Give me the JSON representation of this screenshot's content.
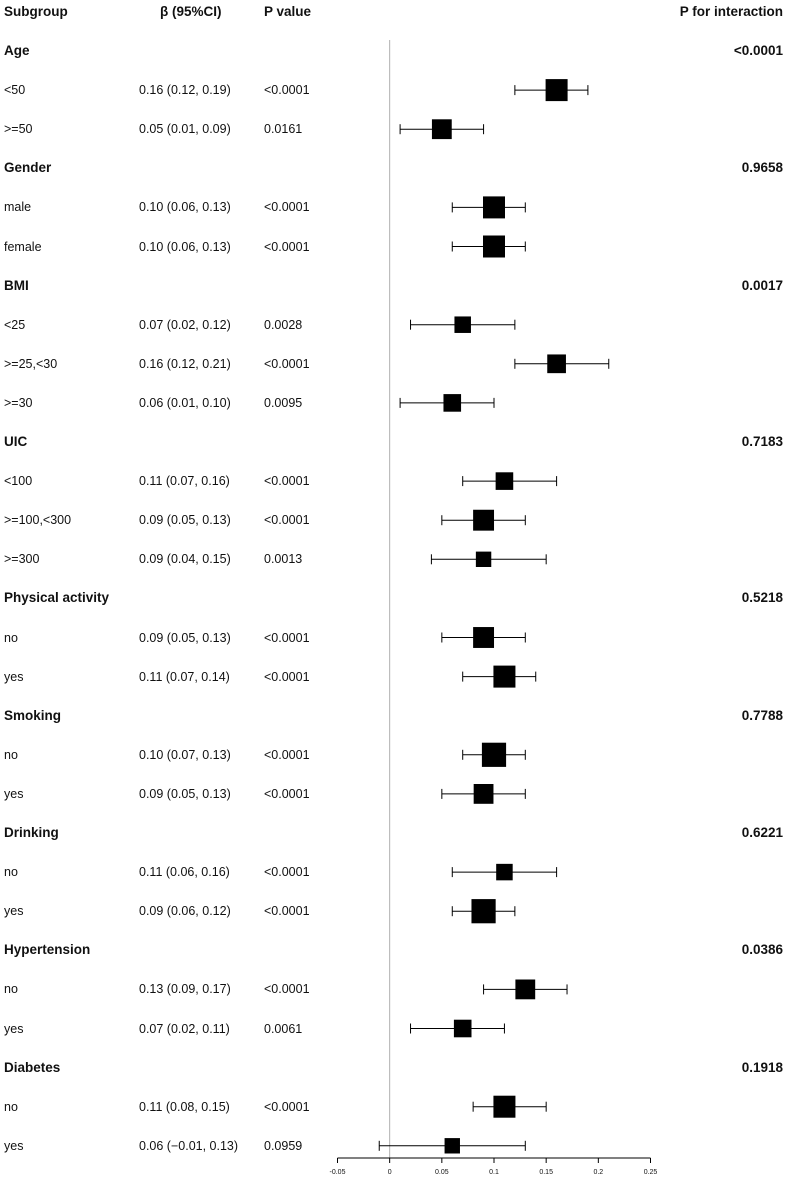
{
  "headers": {
    "subgroup": "Subgroup",
    "beta": "β (95%CI)",
    "pvalue": "P value",
    "pinteraction": "P for interaction"
  },
  "rows": [
    {
      "kind": "group",
      "label": "Age",
      "p_interaction": "<0.0001"
    },
    {
      "kind": "item",
      "label": "<50",
      "beta_text": "0.16 (0.12, 0.19)",
      "p": "<0.0001",
      "est": 0.16,
      "lo": 0.12,
      "hi": 0.19,
      "weight": 1.0
    },
    {
      "kind": "item",
      "label": ">=50",
      "beta_text": "0.05 (0.01, 0.09)",
      "p": "0.0161",
      "est": 0.05,
      "lo": 0.01,
      "hi": 0.09,
      "weight": 0.9
    },
    {
      "kind": "group",
      "label": "Gender",
      "p_interaction": "0.9658"
    },
    {
      "kind": "item",
      "label": "male",
      "beta_text": "0.10 (0.06, 0.13)",
      "p": "<0.0001",
      "est": 0.1,
      "lo": 0.06,
      "hi": 0.13,
      "weight": 1.0
    },
    {
      "kind": "item",
      "label": "female",
      "beta_text": "0.10 (0.06, 0.13)",
      "p": "<0.0001",
      "est": 0.1,
      "lo": 0.06,
      "hi": 0.13,
      "weight": 1.0
    },
    {
      "kind": "group",
      "label": "BMI",
      "p_interaction": "0.0017"
    },
    {
      "kind": "item",
      "label": "<25",
      "beta_text": "0.07 (0.02, 0.12)",
      "p": "0.0028",
      "est": 0.07,
      "lo": 0.02,
      "hi": 0.12,
      "weight": 0.75
    },
    {
      "kind": "item",
      "label": ">=25,<30",
      "beta_text": "0.16 (0.12, 0.21)",
      "p": "<0.0001",
      "est": 0.16,
      "lo": 0.12,
      "hi": 0.21,
      "weight": 0.85
    },
    {
      "kind": "item",
      "label": ">=30",
      "beta_text": "0.06 (0.01, 0.10)",
      "p": "0.0095",
      "est": 0.06,
      "lo": 0.01,
      "hi": 0.1,
      "weight": 0.8
    },
    {
      "kind": "group",
      "label": "UIC",
      "p_interaction": "0.7183"
    },
    {
      "kind": "item",
      "label": "<100",
      "beta_text": "0.11 (0.07, 0.16)",
      "p": "<0.0001",
      "est": 0.11,
      "lo": 0.07,
      "hi": 0.16,
      "weight": 0.8
    },
    {
      "kind": "item",
      "label": ">=100,<300",
      "beta_text": "0.09 (0.05, 0.13)",
      "p": "<0.0001",
      "est": 0.09,
      "lo": 0.05,
      "hi": 0.13,
      "weight": 0.95
    },
    {
      "kind": "item",
      "label": ">=300",
      "beta_text": "0.09 (0.04, 0.15)",
      "p": "0.0013",
      "est": 0.09,
      "lo": 0.04,
      "hi": 0.15,
      "weight": 0.7
    },
    {
      "kind": "group",
      "label": "Physical activity",
      "p_interaction": "0.5218"
    },
    {
      "kind": "item",
      "label": "no",
      "beta_text": "0.09 (0.05, 0.13)",
      "p": "<0.0001",
      "est": 0.09,
      "lo": 0.05,
      "hi": 0.13,
      "weight": 0.95
    },
    {
      "kind": "item",
      "label": "yes",
      "beta_text": "0.11 (0.07, 0.14)",
      "p": "<0.0001",
      "est": 0.11,
      "lo": 0.07,
      "hi": 0.14,
      "weight": 1.0
    },
    {
      "kind": "group",
      "label": "Smoking",
      "p_interaction": "0.7788"
    },
    {
      "kind": "item",
      "label": "no",
      "beta_text": "0.10 (0.07, 0.13)",
      "p": "<0.0001",
      "est": 0.1,
      "lo": 0.07,
      "hi": 0.13,
      "weight": 1.1
    },
    {
      "kind": "item",
      "label": "yes",
      "beta_text": "0.09 (0.05, 0.13)",
      "p": "<0.0001",
      "est": 0.09,
      "lo": 0.05,
      "hi": 0.13,
      "weight": 0.9
    },
    {
      "kind": "group",
      "label": "Drinking",
      "p_interaction": "0.6221"
    },
    {
      "kind": "item",
      "label": "no",
      "beta_text": "0.11 (0.06, 0.16)",
      "p": "<0.0001",
      "est": 0.11,
      "lo": 0.06,
      "hi": 0.16,
      "weight": 0.75
    },
    {
      "kind": "item",
      "label": "yes",
      "beta_text": "0.09 (0.06, 0.12)",
      "p": "<0.0001",
      "est": 0.09,
      "lo": 0.06,
      "hi": 0.12,
      "weight": 1.1
    },
    {
      "kind": "group",
      "label": "Hypertension",
      "p_interaction": "0.0386"
    },
    {
      "kind": "item",
      "label": "no",
      "beta_text": "0.13 (0.09, 0.17)",
      "p": "<0.0001",
      "est": 0.13,
      "lo": 0.09,
      "hi": 0.17,
      "weight": 0.9
    },
    {
      "kind": "item",
      "label": "yes",
      "beta_text": "0.07 (0.02, 0.11)",
      "p": "0.0061",
      "est": 0.07,
      "lo": 0.02,
      "hi": 0.11,
      "weight": 0.8
    },
    {
      "kind": "group",
      "label": "Diabetes",
      "p_interaction": "0.1918"
    },
    {
      "kind": "item",
      "label": "no",
      "beta_text": "0.11 (0.08, 0.15)",
      "p": "<0.0001",
      "est": 0.11,
      "lo": 0.08,
      "hi": 0.15,
      "weight": 1.0
    },
    {
      "kind": "item",
      "label": "yes",
      "beta_text": "0.06 (−0.01, 0.13)",
      "p": "0.0959",
      "est": 0.06,
      "lo": -0.01,
      "hi": 0.13,
      "weight": 0.7
    }
  ],
  "chart_data": {
    "type": "forest",
    "xlim": [
      -0.05,
      0.25
    ],
    "xticks": [
      -0.05,
      0,
      0.05,
      0.1,
      0.15,
      0.2,
      0.25
    ],
    "xtick_labels": [
      "-0.05",
      "0",
      "0.05",
      "0.1",
      "0.15",
      "0.2",
      "0.25"
    ],
    "reference_line": 0,
    "colors": {
      "marker": "#000000",
      "reference": "#b0b0b0",
      "axis": "#000000"
    }
  }
}
